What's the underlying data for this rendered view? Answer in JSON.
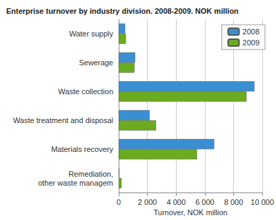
{
  "chart_data": {
    "type": "bar",
    "orientation": "horizontal",
    "title": "Enterprise turnover by industry division. 2008-2009. NOK million",
    "x_label": "Turnover, NOK million",
    "categories": [
      "Water supply",
      "Sewerage",
      "Waste collection",
      "Waste treatment and disposal",
      "Materials recovery",
      "Remediation, other waste managem"
    ],
    "series": [
      {
        "name": "2008",
        "color": "#3a8fd3",
        "values": [
          450,
          1150,
          9450,
          2150,
          6650,
          50
        ]
      },
      {
        "name": "2009",
        "color": "#6aab1f",
        "values": [
          500,
          1100,
          8900,
          2600,
          5450,
          200
        ]
      }
    ],
    "xlim": [
      0,
      10000
    ],
    "xticks": [
      0,
      {
        "value": 2000,
        "label": "2 000"
      },
      {
        "value": 4000,
        "label": "4 000"
      },
      {
        "value": 6000,
        "label": "6 000"
      },
      {
        "value": 8000,
        "label": "8 000"
      },
      {
        "value": 10000,
        "label": "10 000"
      }
    ],
    "grid": true,
    "legend": "upper right"
  }
}
